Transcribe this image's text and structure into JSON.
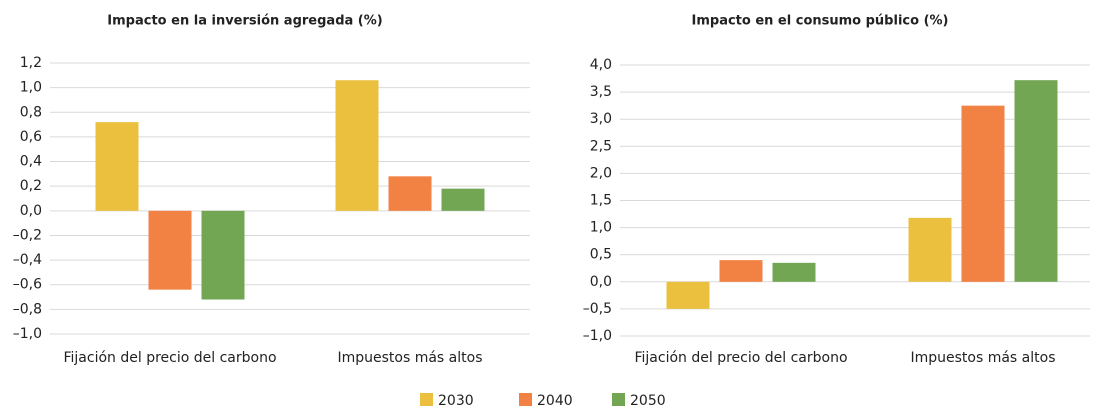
{
  "chart_data": [
    {
      "type": "bar",
      "title": "Impacto en la inversión agregada (%)",
      "categories": [
        "Fijación del precio del carbono",
        "Impuestos más altos"
      ],
      "series": [
        {
          "values": [
            0.72,
            1.06
          ]
        },
        {
          "values": [
            -0.64,
            0.28
          ]
        },
        {
          "values": [
            -0.72,
            0.18
          ]
        }
      ],
      "ylim": [
        -1.0,
        1.2
      ],
      "yticks": [
        {
          "value": -1.0,
          "label": "–1,0"
        },
        {
          "value": -0.8,
          "label": "–0,8"
        },
        {
          "value": -0.6,
          "label": "–0,6"
        },
        {
          "value": -0.4,
          "label": "–0,4"
        },
        {
          "value": -0.2,
          "label": "–0,2"
        },
        {
          "value": 0,
          "label": "0,0"
        },
        {
          "value": 0.2,
          "label": "0,2"
        },
        {
          "value": 0.4,
          "label": "0,4"
        },
        {
          "value": 0.6,
          "label": "0,6"
        },
        {
          "value": 0.8,
          "label": "0,8"
        },
        {
          "value": 1.0,
          "label": "1,0"
        },
        {
          "value": 1.2,
          "label": "1,2"
        }
      ],
      "grid": true
    },
    {
      "type": "bar",
      "title": "Impacto en el consumo público (%)",
      "categories": [
        "Fijación del precio del carbono",
        "Impuestos más altos"
      ],
      "series": [
        {
          "values": [
            -0.5,
            1.18
          ]
        },
        {
          "values": [
            0.4,
            3.25
          ]
        },
        {
          "values": [
            0.35,
            3.72
          ]
        }
      ],
      "ylim": [
        -1.0,
        4.0
      ],
      "yticks": [
        {
          "value": -1.0,
          "label": "–1,0"
        },
        {
          "value": -0.5,
          "label": "–0,5"
        },
        {
          "value": 0,
          "label": "0,0"
        },
        {
          "value": 0.5,
          "label": "0,5"
        },
        {
          "value": 1.0,
          "label": "1,0"
        },
        {
          "value": 1.5,
          "label": "1,5"
        },
        {
          "value": 2.0,
          "label": "2,0"
        },
        {
          "value": 2.5,
          "label": "2,5"
        },
        {
          "value": 3.0,
          "label": "3,0"
        },
        {
          "value": 3.5,
          "label": "3,5"
        },
        {
          "value": 4.0,
          "label": "4,0"
        }
      ],
      "grid": true
    }
  ],
  "legend": {
    "items": [
      {
        "name": "2030",
        "color": "#ebc03f"
      },
      {
        "name": "2040",
        "color": "#f28244"
      },
      {
        "name": "2050",
        "color": "#72a653"
      }
    ]
  }
}
